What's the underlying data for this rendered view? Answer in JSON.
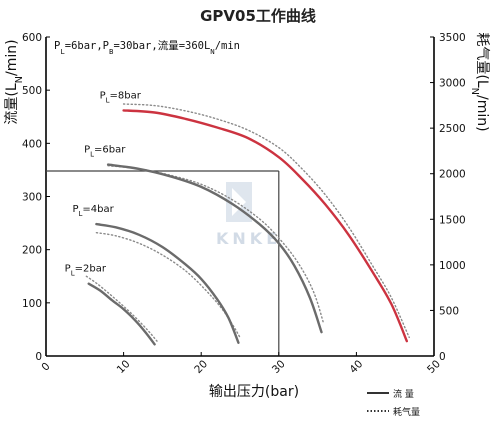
{
  "chart_data": {
    "type": "line",
    "title": "GPV05工作曲线",
    "condition_text": "P_L=6bar,P_B=30bar,流量=360L_N/min",
    "xlabel": "输出压力(bar)",
    "ylabel_left": "流量(L_N/min)",
    "ylabel_right": "耗气量(L_N/min)",
    "x_ticks": [
      "0",
      "10",
      "20",
      "30",
      "40",
      "50"
    ],
    "y_left_ticks": [
      "0",
      "100",
      "200",
      "300",
      "400",
      "500",
      "600"
    ],
    "y_right_ticks": [
      "0",
      "500",
      "1000",
      "1500",
      "2000",
      "2500",
      "3000",
      "3500"
    ],
    "xlim": [
      0,
      50
    ],
    "ylim_left": [
      0,
      600
    ],
    "ylim_right": [
      0,
      3500
    ],
    "grid": false,
    "watermark": "KNKE",
    "legend": [
      {
        "label": "流 量",
        "style": "solid"
      },
      {
        "label": "耗气量",
        "style": "dotted"
      }
    ],
    "reference_lines": {
      "x": 30,
      "y_left": 348
    },
    "series": [
      {
        "name": "P_L=2bar",
        "color": "#6b6b6b",
        "flow": [
          [
            5.5,
            136
          ],
          [
            7,
            123
          ],
          [
            8.5,
            105
          ],
          [
            10,
            88
          ],
          [
            11.5,
            67
          ],
          [
            12.8,
            45
          ],
          [
            14,
            22
          ]
        ],
        "consumption": [
          [
            5.2,
            150
          ],
          [
            6.5,
            137
          ],
          [
            8,
            119
          ],
          [
            9.5,
            100
          ],
          [
            11,
            80
          ],
          [
            12.5,
            58
          ],
          [
            13.5,
            42
          ],
          [
            14.3,
            28
          ]
        ]
      },
      {
        "name": "P_L=4bar",
        "color": "#6b6b6b",
        "flow": [
          [
            6.5,
            248
          ],
          [
            9,
            242
          ],
          [
            12,
            228
          ],
          [
            15,
            205
          ],
          [
            18,
            172
          ],
          [
            20,
            145
          ],
          [
            22,
            108
          ],
          [
            23.5,
            72
          ],
          [
            24.8,
            25
          ]
        ],
        "consumption": [
          [
            6.5,
            232
          ],
          [
            9,
            226
          ],
          [
            12,
            212
          ],
          [
            15,
            190
          ],
          [
            18,
            160
          ],
          [
            20.5,
            125
          ],
          [
            22.5,
            92
          ],
          [
            24,
            60
          ],
          [
            25,
            35
          ]
        ]
      },
      {
        "name": "P_L=6bar",
        "color": "#6b6b6b",
        "flow": [
          [
            8,
            360
          ],
          [
            12,
            352
          ],
          [
            16,
            338
          ],
          [
            20,
            318
          ],
          [
            24,
            286
          ],
          [
            27.5,
            248
          ],
          [
            30,
            212
          ],
          [
            32,
            170
          ],
          [
            34,
            110
          ],
          [
            35.5,
            45
          ]
        ],
        "consumption": [
          [
            8,
            358
          ],
          [
            12,
            352
          ],
          [
            16,
            340
          ],
          [
            20,
            323
          ],
          [
            24,
            294
          ],
          [
            27.5,
            258
          ],
          [
            30,
            222
          ],
          [
            32.5,
            175
          ],
          [
            34.5,
            120
          ],
          [
            35.8,
            60
          ]
        ]
      },
      {
        "name": "P_L=8bar",
        "color": "#cc3340",
        "flow": [
          [
            10,
            462
          ],
          [
            14,
            458
          ],
          [
            18,
            446
          ],
          [
            22,
            430
          ],
          [
            26,
            410
          ],
          [
            30,
            374
          ],
          [
            33,
            333
          ],
          [
            36,
            285
          ],
          [
            39,
            228
          ],
          [
            42,
            160
          ],
          [
            44.5,
            98
          ],
          [
            46.5,
            28
          ]
        ],
        "consumption": [
          [
            10,
            474
          ],
          [
            14,
            471
          ],
          [
            18,
            461
          ],
          [
            22,
            446
          ],
          [
            26,
            425
          ],
          [
            30,
            392
          ],
          [
            33,
            352
          ],
          [
            36,
            303
          ],
          [
            39,
            243
          ],
          [
            42,
            172
          ],
          [
            44.5,
            110
          ],
          [
            46.8,
            35
          ]
        ]
      }
    ]
  }
}
